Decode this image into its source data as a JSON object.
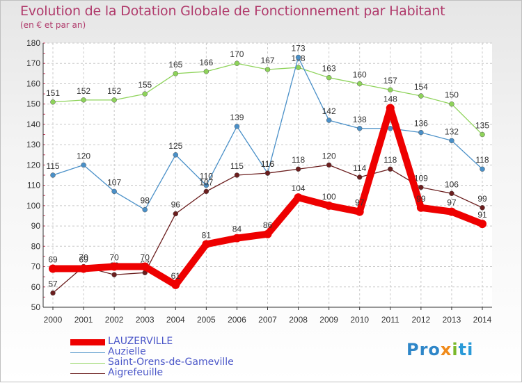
{
  "chart_data": {
    "type": "line",
    "title": "Evolution de la Dotation Globale de Fonctionnement par Habitant",
    "subtitle": "(en € et par an)",
    "x": [
      "2000",
      "2001",
      "2002",
      "2003",
      "2004",
      "2005",
      "2006",
      "2007",
      "2008",
      "2009",
      "2010",
      "2011",
      "2012",
      "2013",
      "2014"
    ],
    "ylim": [
      50,
      180
    ],
    "yticks": [
      50,
      60,
      70,
      80,
      90,
      100,
      110,
      120,
      130,
      140,
      150,
      160,
      170,
      180
    ],
    "grid": true,
    "legend_position": "bottom-left",
    "series": [
      {
        "name": "Saint-Orens-de-Gameville",
        "color": "#8ed35a",
        "values": [
          151,
          152,
          152,
          155,
          165,
          166,
          170,
          167,
          168,
          163,
          160,
          157,
          154,
          150,
          135
        ]
      },
      {
        "name": "Auzielle",
        "color": "#4a90c8",
        "values": [
          115,
          120,
          107,
          98,
          125,
          110,
          139,
          116,
          173,
          142,
          138,
          138,
          136,
          132,
          118
        ]
      },
      {
        "name": "Aigrefeuille",
        "color": "#6b1e1e",
        "values": [
          57,
          70,
          66,
          67,
          96,
          107,
          115,
          116,
          118,
          120,
          114,
          118,
          109,
          106,
          99
        ]
      },
      {
        "name": "LAUZERVILLE",
        "color": "#ee0000",
        "values": [
          69,
          69,
          70,
          70,
          61,
          81,
          84,
          86,
          104,
          100,
          97,
          148,
          99,
          97,
          91
        ]
      }
    ]
  },
  "legend": {
    "items": [
      {
        "label": "LAUZERVILLE",
        "color": "#ee0000"
      },
      {
        "label": "Auzielle",
        "color": "#4a90c8"
      },
      {
        "label": "Saint-Orens-de-Gameville",
        "color": "#8ed35a"
      },
      {
        "label": "Aigrefeuille",
        "color": "#6b1e1e"
      }
    ]
  },
  "logo": {
    "text": "Proxiti",
    "parts": [
      "Pro",
      "x",
      "i",
      "ti"
    ]
  }
}
